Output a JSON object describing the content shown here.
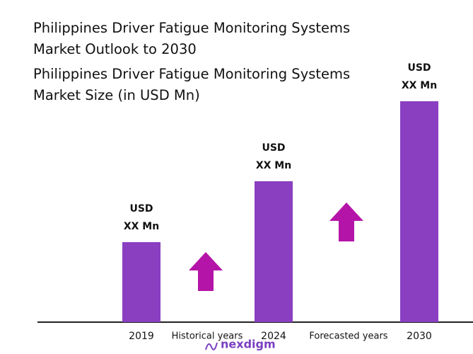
{
  "chart_data": {
    "type": "bar",
    "title": "Philippines Driver Fatigue Monitoring Systems Market Outlook to 2030",
    "subtitle": "Philippines Driver Fatigue Monitoring Systems Market Size (in USD Mn)",
    "categories": [
      "2019",
      "2024",
      "2030"
    ],
    "values": [
      113,
      199,
      312
    ],
    "value_labels": [
      [
        "USD",
        "XX Mn"
      ],
      [
        "USD",
        "XX Mn"
      ],
      [
        "USD",
        "XX Mn"
      ]
    ],
    "color": "#8a3fc1",
    "ylim": [
      0,
      330
    ],
    "annotations": [
      "Historical years",
      "Forecasted years"
    ],
    "logo": "nexdigm"
  }
}
